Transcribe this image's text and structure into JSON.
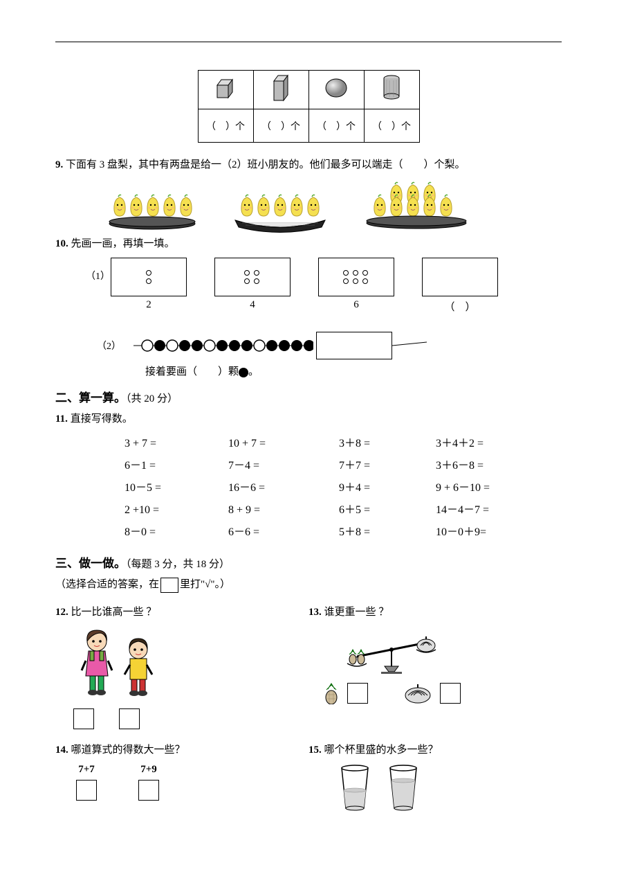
{
  "shapes_table": {
    "labels": [
      "（　）个",
      "（　）个",
      "（　）个",
      "（　）个"
    ]
  },
  "q9": {
    "num": "9.",
    "text": "下面有 3 盘梨，其中有两盘是给一（2）班小朋友的。他们最多可以端走（　　）个梨。",
    "plate_counts": [
      5,
      5,
      8
    ]
  },
  "q10": {
    "num": "10.",
    "text": "先画一画，再填一填。",
    "sub1_label": "（1）",
    "sequence_nums": [
      "2",
      "4",
      "6",
      "（　）"
    ],
    "sub2_label": "（2）",
    "beads_caption_pre": "接着要画（　　）颗",
    "beads_caption_post": "。"
  },
  "section2": {
    "title": "二、算一算。",
    "sub": "（共 20 分）"
  },
  "q11": {
    "num": "11.",
    "text": "直接写得数。",
    "rows": [
      [
        "3 + 7 =",
        "10 + 7 =",
        "3＋8 =",
        "3＋4＋2 ="
      ],
      [
        "6－1 =",
        "7－4 =",
        "7＋7 =",
        "3＋6－8 ="
      ],
      [
        "10－5 =",
        "16－6 =",
        "9＋4 =",
        "9 + 6－10 ="
      ],
      [
        "2 +10 =",
        "8 + 9 =",
        "6＋5 =",
        "14－4－7 ="
      ],
      [
        "8－0 =",
        "6－6 =",
        "5＋8 =",
        "10－0＋9="
      ]
    ]
  },
  "section3": {
    "title": "三、做一做。",
    "sub": "（每题 3 分，共 18 分）",
    "instruction_pre": "（选择合适的答案，在",
    "instruction_post": "里打\"√\"。）"
  },
  "q12": {
    "num": "12.",
    "text": "比一比谁高一些 ？"
  },
  "q13": {
    "num": "13.",
    "text": "谁更重一些 ？"
  },
  "q14": {
    "num": "14.",
    "text": "哪道算式的得数大一些？",
    "eq1": "7+7",
    "eq2": "7+9"
  },
  "q15": {
    "num": "15.",
    "text": "哪个杯里盛的水多一些？"
  },
  "colors": {
    "text": "#000000",
    "bg": "#ffffff",
    "pear_body": "#f5e050",
    "pear_stroke": "#b8a030",
    "plate_fill": "#404040",
    "bead_white": "#ffffff",
    "bead_black": "#000000",
    "cup_water": "#d8d8d8"
  }
}
